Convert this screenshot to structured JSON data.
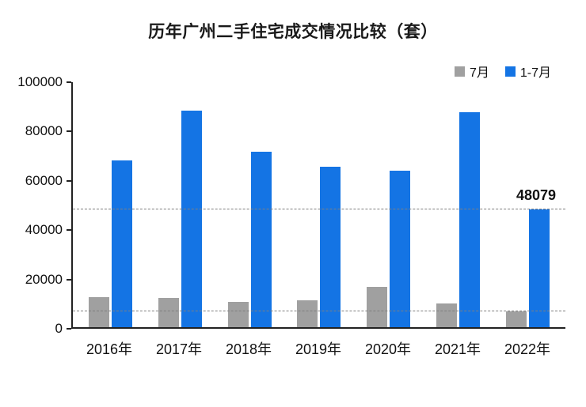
{
  "chart": {
    "title": "历年广州二手住宅成交情况比较（套）"
  },
  "chart_data": {
    "type": "bar",
    "title": "历年广州二手住宅成交情况比较（套）",
    "categories": [
      "2016年",
      "2017年",
      "2018年",
      "2019年",
      "2020年",
      "2021年",
      "2022年"
    ],
    "series": [
      {
        "name": "7月",
        "color": "#A0A0A0",
        "values": [
          12300,
          11800,
          10200,
          11000,
          16500,
          9800,
          6500
        ]
      },
      {
        "name": "1-7月",
        "color": "#1474E4",
        "values": [
          68000,
          88300,
          71500,
          65500,
          64000,
          87800,
          48079
        ]
      }
    ],
    "xlabel": "",
    "ylabel": "",
    "ylim": [
      0,
      100000
    ],
    "yticks": [
      0,
      20000,
      40000,
      60000,
      80000,
      100000
    ],
    "grid": false,
    "legend_position": "top-right",
    "reference_lines": [
      48079,
      6500
    ],
    "annotations": [
      {
        "text": "48079",
        "x": "2022年",
        "y": 48079
      }
    ]
  }
}
